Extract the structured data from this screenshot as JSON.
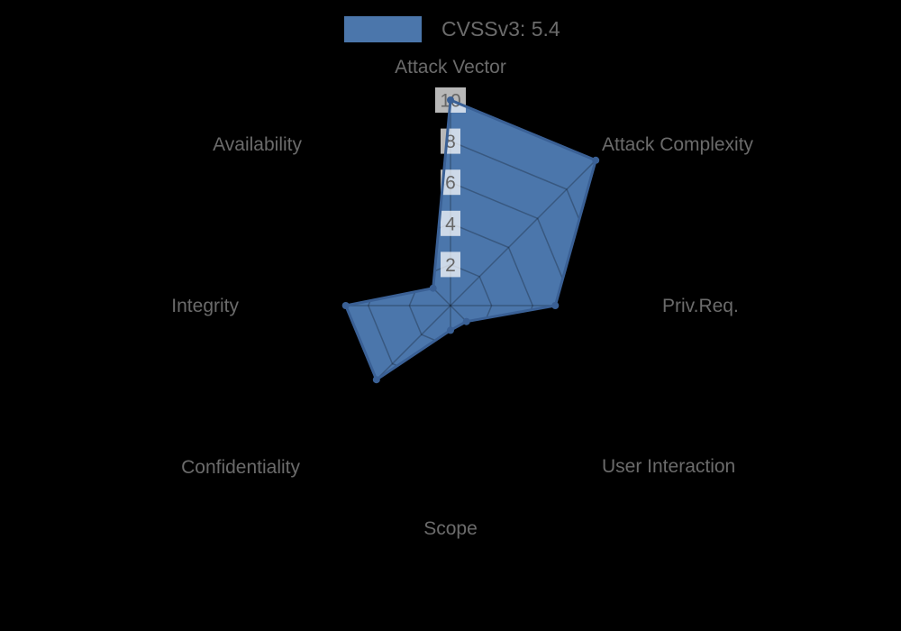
{
  "legend": {
    "label": "CVSSv3: 5.4",
    "position": "top"
  },
  "chart_data": {
    "type": "radar",
    "axes": [
      "Attack Vector",
      "Attack Complexity",
      "Priv.Req.",
      "User Interaction",
      "Scope",
      "Confidentiality",
      "Integrity",
      "Availability"
    ],
    "series": [
      {
        "name": "CVSSv3: 5.4",
        "values": [
          10,
          10,
          5.1,
          1.1,
          1.2,
          5.1,
          5.1,
          1.2
        ]
      }
    ],
    "scale": {
      "min": 0,
      "max": 10,
      "ticks": [
        2,
        4,
        6,
        8,
        10
      ]
    },
    "grid": "on",
    "legend_position": "top",
    "colors": {
      "background": "#000000",
      "fill": "#4b76ab",
      "border": "#3a6095",
      "grid_line": "rgba(0,0,0,0.25)",
      "tick_backdrop": "rgba(255,255,255,0.72)",
      "tick_text": "#666666",
      "label_text": "#6b6b6b"
    }
  }
}
